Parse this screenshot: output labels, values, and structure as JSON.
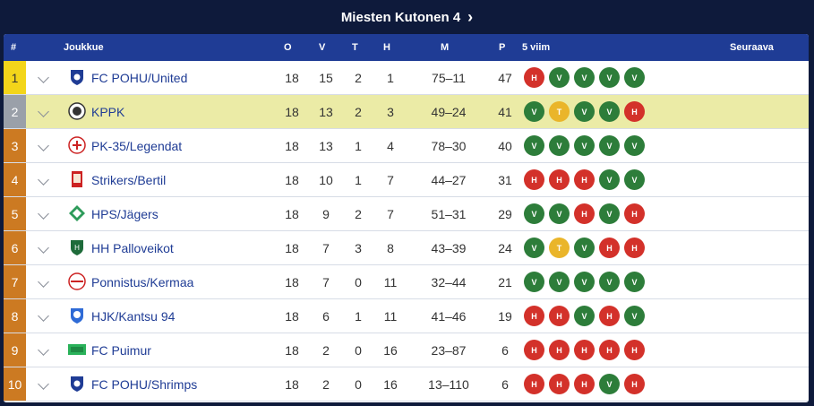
{
  "title": "Miesten Kutonen 4",
  "headers": {
    "rank": "#",
    "team": "Joukkue",
    "o": "O",
    "v": "V",
    "t": "T",
    "h": "H",
    "m": "M",
    "p": "P",
    "form": "5 viim",
    "next": "Seuraava"
  },
  "rows": [
    {
      "rank": "1",
      "team": "FC POHU/United",
      "o": "18",
      "v": "15",
      "t": "2",
      "h": "1",
      "m": "75–11",
      "p": "47",
      "form": [
        "H",
        "V",
        "V",
        "V",
        "V"
      ]
    },
    {
      "rank": "2",
      "team": "KPPK",
      "o": "18",
      "v": "13",
      "t": "2",
      "h": "3",
      "m": "49–24",
      "p": "41",
      "form": [
        "V",
        "T",
        "V",
        "V",
        "H"
      ]
    },
    {
      "rank": "3",
      "team": "PK-35/Legendat",
      "o": "18",
      "v": "13",
      "t": "1",
      "h": "4",
      "m": "78–30",
      "p": "40",
      "form": [
        "V",
        "V",
        "V",
        "V",
        "V"
      ]
    },
    {
      "rank": "4",
      "team": "Strikers/Bertil",
      "o": "18",
      "v": "10",
      "t": "1",
      "h": "7",
      "m": "44–27",
      "p": "31",
      "form": [
        "H",
        "H",
        "H",
        "V",
        "V"
      ]
    },
    {
      "rank": "5",
      "team": "HPS/Jägers",
      "o": "18",
      "v": "9",
      "t": "2",
      "h": "7",
      "m": "51–31",
      "p": "29",
      "form": [
        "V",
        "V",
        "H",
        "V",
        "H"
      ]
    },
    {
      "rank": "6",
      "team": "HH Palloveikot",
      "o": "18",
      "v": "7",
      "t": "3",
      "h": "8",
      "m": "43–39",
      "p": "24",
      "form": [
        "V",
        "T",
        "V",
        "H",
        "H"
      ]
    },
    {
      "rank": "7",
      "team": "Ponnistus/Kermaa",
      "o": "18",
      "v": "7",
      "t": "0",
      "h": "11",
      "m": "32–44",
      "p": "21",
      "form": [
        "V",
        "V",
        "V",
        "V",
        "V"
      ]
    },
    {
      "rank": "8",
      "team": "HJK/Kantsu 94",
      "o": "18",
      "v": "6",
      "t": "1",
      "h": "11",
      "m": "41–46",
      "p": "19",
      "form": [
        "H",
        "H",
        "V",
        "H",
        "V"
      ]
    },
    {
      "rank": "9",
      "team": "FC Puimur",
      "o": "18",
      "v": "2",
      "t": "0",
      "h": "16",
      "m": "23–87",
      "p": "6",
      "form": [
        "H",
        "H",
        "H",
        "H",
        "H"
      ]
    },
    {
      "rank": "10",
      "team": "FC POHU/Shrimps",
      "o": "18",
      "v": "2",
      "t": "0",
      "h": "16",
      "m": "13–110",
      "p": "6",
      "form": [
        "H",
        "H",
        "H",
        "V",
        "H"
      ]
    }
  ],
  "highlighted_row": 2,
  "colors": {
    "loss": "#d3312a",
    "win": "#2d7d3a",
    "draw": "#eab52a",
    "header": "#1f3c95",
    "rank_other": "#cc7a22",
    "rank_first": "#f3d51a"
  }
}
